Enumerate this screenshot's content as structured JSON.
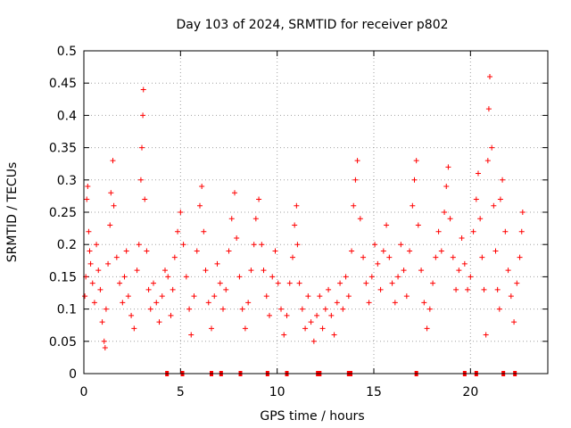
{
  "chart_data": {
    "type": "scatter",
    "title": "Day 103 of 2024, SRMTID for receiver p802",
    "xlabel": "GPS time / hours",
    "ylabel": "SRMTID / TECUs",
    "xlim": [
      0,
      24
    ],
    "ylim": [
      0,
      0.5
    ],
    "xticks": [
      "0",
      "5",
      "10",
      "15",
      "20"
    ],
    "xtick_values": [
      0,
      5,
      10,
      15,
      20
    ],
    "yticks": [
      "0",
      "0.05",
      "0.1",
      "0.15",
      "0.2",
      "0.25",
      "0.3",
      "0.35",
      "0.4",
      "0.45",
      "0.5"
    ],
    "ytick_values": [
      0,
      0.05,
      0.1,
      0.15,
      0.2,
      0.25,
      0.3,
      0.35,
      0.4,
      0.45,
      0.5
    ],
    "grid": true,
    "marker": "+",
    "colors": {
      "series": "#ff0000",
      "grid": "#a0a0a0",
      "axis": "#000000"
    },
    "series": [
      {
        "name": "SRMTID",
        "points": [
          [
            0.05,
            0.12
          ],
          [
            0.1,
            0.15
          ],
          [
            0.15,
            0.27
          ],
          [
            0.2,
            0.29
          ],
          [
            0.25,
            0.22
          ],
          [
            0.3,
            0.19
          ],
          [
            0.35,
            0.17
          ],
          [
            0.45,
            0.14
          ],
          [
            0.55,
            0.11
          ],
          [
            0.65,
            0.2
          ],
          [
            0.75,
            0.16
          ],
          [
            0.85,
            0.13
          ],
          [
            0.95,
            0.08
          ],
          [
            1.05,
            0.05
          ],
          [
            1.1,
            0.04
          ],
          [
            1.15,
            0.1
          ],
          [
            1.25,
            0.17
          ],
          [
            1.35,
            0.23
          ],
          [
            1.4,
            0.28
          ],
          [
            1.5,
            0.33
          ],
          [
            1.55,
            0.26
          ],
          [
            1.7,
            0.18
          ],
          [
            1.85,
            0.14
          ],
          [
            2.0,
            0.11
          ],
          [
            2.1,
            0.15
          ],
          [
            2.2,
            0.19
          ],
          [
            2.3,
            0.12
          ],
          [
            2.45,
            0.09
          ],
          [
            2.6,
            0.07
          ],
          [
            2.75,
            0.16
          ],
          [
            2.85,
            0.2
          ],
          [
            2.95,
            0.3
          ],
          [
            3.0,
            0.35
          ],
          [
            3.05,
            0.4
          ],
          [
            3.08,
            0.44
          ],
          [
            3.15,
            0.27
          ],
          [
            3.25,
            0.19
          ],
          [
            3.35,
            0.13
          ],
          [
            3.45,
            0.1
          ],
          [
            3.6,
            0.14
          ],
          [
            3.75,
            0.11
          ],
          [
            3.9,
            0.08
          ],
          [
            4.05,
            0.12
          ],
          [
            4.2,
            0.16
          ],
          [
            4.35,
            0.15
          ],
          [
            4.5,
            0.09
          ],
          [
            4.6,
            0.13
          ],
          [
            4.7,
            0.18
          ],
          [
            4.85,
            0.22
          ],
          [
            5.0,
            0.25
          ],
          [
            5.15,
            0.2
          ],
          [
            5.3,
            0.15
          ],
          [
            5.45,
            0.1
          ],
          [
            5.55,
            0.06
          ],
          [
            5.7,
            0.12
          ],
          [
            5.85,
            0.19
          ],
          [
            6.0,
            0.26
          ],
          [
            6.1,
            0.29
          ],
          [
            6.2,
            0.22
          ],
          [
            6.3,
            0.16
          ],
          [
            6.45,
            0.11
          ],
          [
            6.6,
            0.07
          ],
          [
            6.75,
            0.12
          ],
          [
            6.9,
            0.17
          ],
          [
            7.05,
            0.14
          ],
          [
            7.2,
            0.1
          ],
          [
            7.35,
            0.13
          ],
          [
            7.5,
            0.19
          ],
          [
            7.65,
            0.24
          ],
          [
            7.8,
            0.28
          ],
          [
            7.9,
            0.21
          ],
          [
            8.05,
            0.15
          ],
          [
            8.2,
            0.1
          ],
          [
            8.35,
            0.07
          ],
          [
            8.5,
            0.11
          ],
          [
            8.65,
            0.16
          ],
          [
            8.8,
            0.2
          ],
          [
            8.9,
            0.24
          ],
          [
            9.05,
            0.27
          ],
          [
            9.2,
            0.2
          ],
          [
            9.3,
            0.16
          ],
          [
            9.45,
            0.12
          ],
          [
            9.6,
            0.09
          ],
          [
            9.75,
            0.15
          ],
          [
            9.9,
            0.19
          ],
          [
            10.05,
            0.14
          ],
          [
            10.2,
            0.1
          ],
          [
            10.35,
            0.06
          ],
          [
            10.5,
            0.09
          ],
          [
            10.65,
            0.14
          ],
          [
            10.8,
            0.18
          ],
          [
            10.9,
            0.23
          ],
          [
            11.0,
            0.26
          ],
          [
            11.05,
            0.2
          ],
          [
            11.15,
            0.14
          ],
          [
            11.3,
            0.1
          ],
          [
            11.45,
            0.07
          ],
          [
            11.6,
            0.12
          ],
          [
            11.75,
            0.08
          ],
          [
            11.9,
            0.05
          ],
          [
            12.05,
            0.09
          ],
          [
            12.2,
            0.12
          ],
          [
            12.35,
            0.07
          ],
          [
            12.5,
            0.1
          ],
          [
            12.65,
            0.13
          ],
          [
            12.8,
            0.09
          ],
          [
            12.95,
            0.06
          ],
          [
            13.1,
            0.11
          ],
          [
            13.25,
            0.14
          ],
          [
            13.4,
            0.1
          ],
          [
            13.55,
            0.15
          ],
          [
            13.7,
            0.12
          ],
          [
            13.85,
            0.19
          ],
          [
            13.95,
            0.26
          ],
          [
            14.05,
            0.3
          ],
          [
            14.15,
            0.33
          ],
          [
            14.3,
            0.24
          ],
          [
            14.45,
            0.18
          ],
          [
            14.6,
            0.14
          ],
          [
            14.75,
            0.11
          ],
          [
            14.9,
            0.15
          ],
          [
            15.05,
            0.2
          ],
          [
            15.2,
            0.17
          ],
          [
            15.35,
            0.13
          ],
          [
            15.5,
            0.19
          ],
          [
            15.65,
            0.23
          ],
          [
            15.8,
            0.18
          ],
          [
            15.95,
            0.14
          ],
          [
            16.1,
            0.11
          ],
          [
            16.25,
            0.15
          ],
          [
            16.4,
            0.2
          ],
          [
            16.55,
            0.16
          ],
          [
            16.7,
            0.12
          ],
          [
            16.85,
            0.19
          ],
          [
            17.0,
            0.26
          ],
          [
            17.1,
            0.3
          ],
          [
            17.2,
            0.33
          ],
          [
            17.3,
            0.23
          ],
          [
            17.45,
            0.16
          ],
          [
            17.6,
            0.11
          ],
          [
            17.75,
            0.07
          ],
          [
            17.9,
            0.1
          ],
          [
            18.05,
            0.14
          ],
          [
            18.2,
            0.18
          ],
          [
            18.35,
            0.22
          ],
          [
            18.5,
            0.19
          ],
          [
            18.65,
            0.25
          ],
          [
            18.75,
            0.29
          ],
          [
            18.85,
            0.32
          ],
          [
            18.95,
            0.24
          ],
          [
            19.1,
            0.18
          ],
          [
            19.25,
            0.13
          ],
          [
            19.4,
            0.16
          ],
          [
            19.55,
            0.21
          ],
          [
            19.7,
            0.17
          ],
          [
            19.85,
            0.13
          ],
          [
            20.0,
            0.15
          ],
          [
            20.15,
            0.22
          ],
          [
            20.3,
            0.27
          ],
          [
            20.4,
            0.31
          ],
          [
            20.5,
            0.24
          ],
          [
            20.6,
            0.18
          ],
          [
            20.7,
            0.13
          ],
          [
            20.8,
            0.06
          ],
          [
            20.9,
            0.33
          ],
          [
            20.95,
            0.41
          ],
          [
            21.0,
            0.46
          ],
          [
            21.1,
            0.35
          ],
          [
            21.2,
            0.26
          ],
          [
            21.3,
            0.19
          ],
          [
            21.4,
            0.13
          ],
          [
            21.5,
            0.1
          ],
          [
            21.55,
            0.27
          ],
          [
            21.65,
            0.3
          ],
          [
            21.8,
            0.22
          ],
          [
            21.95,
            0.16
          ],
          [
            22.1,
            0.12
          ],
          [
            22.25,
            0.08
          ],
          [
            22.4,
            0.14
          ],
          [
            22.55,
            0.18
          ],
          [
            22.65,
            0.22
          ],
          [
            22.7,
            0.25
          ]
        ]
      }
    ],
    "baseline_markers_x": [
      4.3,
      5.1,
      6.6,
      7.1,
      8.1,
      9.5,
      10.5,
      12.1,
      12.2,
      13.7,
      13.8,
      17.2,
      19.7,
      20.3,
      21.7,
      22.3
    ]
  }
}
